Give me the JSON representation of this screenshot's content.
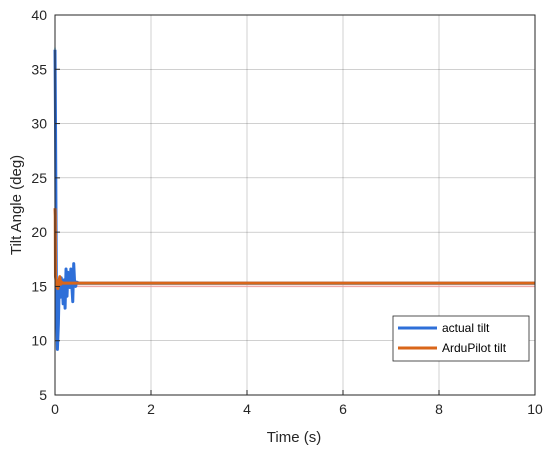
{
  "chart_data": {
    "type": "line",
    "xlabel": "Time (s)",
    "ylabel": "Tilt Angle (deg)",
    "xlim": [
      0,
      10
    ],
    "ylim": [
      5,
      40
    ],
    "xticks": [
      0,
      2,
      4,
      6,
      8,
      10
    ],
    "yticks": [
      5,
      10,
      15,
      20,
      25,
      30,
      35,
      40
    ],
    "grid": true,
    "legend_position": "bottom-right",
    "series": [
      {
        "name": "actual tilt",
        "color": "#2e6fd8",
        "x": [
          0,
          0.01,
          0.02,
          0.03,
          0.05,
          0.07,
          0.09,
          0.11,
          0.13,
          0.15,
          0.17,
          0.19,
          0.21,
          0.23,
          0.25,
          0.27,
          0.29,
          0.31,
          0.33,
          0.35,
          0.37,
          0.39,
          0.41,
          0.43,
          0.45,
          0.5,
          1,
          2,
          4,
          6,
          8,
          10
        ],
        "y": [
          36.8,
          30.5,
          22,
          14,
          9.2,
          11.5,
          15.6,
          14,
          15.8,
          15.2,
          13.4,
          15.6,
          13,
          16.6,
          14.1,
          16.3,
          15.4,
          14.9,
          16.6,
          15.1,
          13.6,
          17.1,
          15.2,
          15,
          15.4,
          15.3,
          15.3,
          15.3,
          15.3,
          15.3,
          15.3,
          15.3
        ]
      },
      {
        "name": "ArduPilot tilt",
        "color": "#d9661a",
        "x": [
          0,
          0.005,
          0.01,
          0.02,
          0.04,
          0.06,
          0.08,
          0.1,
          0.12,
          0.14,
          0.16,
          0.2,
          0.3,
          0.5,
          1,
          2,
          4,
          6,
          8,
          10
        ],
        "y": [
          22.2,
          21.5,
          15.9,
          15.6,
          15,
          14.8,
          15.4,
          15.9,
          15.2,
          15.4,
          15.3,
          15.3,
          15.3,
          15.3,
          15.3,
          15.3,
          15.3,
          15.3,
          15.3,
          15.3
        ]
      }
    ],
    "background_traces": [
      {
        "color": "#5bc8f0",
        "x": [
          0,
          0.01,
          0.03,
          0.05,
          0.08,
          0.12,
          0.16,
          0.2,
          0.3,
          0.45,
          0.5,
          1,
          2,
          4,
          6,
          8,
          10
        ],
        "y": [
          37,
          28,
          18,
          11,
          14.5,
          15.8,
          14.8,
          15.5,
          15.1,
          15.2,
          15.2,
          15.2,
          15.2,
          15.2,
          15.2,
          15.2,
          15.2
        ]
      },
      {
        "color": "#f2a0a0",
        "x": [
          0,
          0.02,
          0.06,
          0.1,
          0.2,
          0.5,
          1,
          2,
          4,
          6,
          8,
          10
        ],
        "y": [
          14.6,
          14.7,
          14.8,
          14.9,
          15,
          15,
          15,
          15,
          15,
          15,
          15,
          15
        ]
      }
    ]
  }
}
